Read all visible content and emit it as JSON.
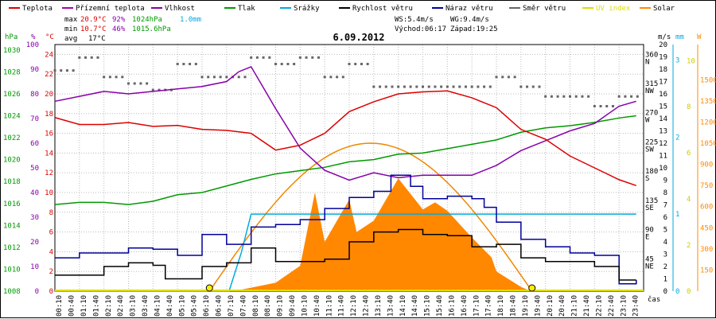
{
  "chart_data": {
    "type": "line",
    "title": "6.09.2012",
    "legend": [
      {
        "name": "Teplota",
        "color": "#dd0000"
      },
      {
        "name": "Přízemní teplota",
        "color": "#aa00aa"
      },
      {
        "name": "Vlhkost",
        "color": "#8800aa"
      },
      {
        "name": "Tlak",
        "color": "#009900"
      },
      {
        "name": "Srážky",
        "color": "#00aadd"
      },
      {
        "name": "Rychlost větru",
        "color": "#000000"
      },
      {
        "name": "Náraz větru",
        "color": "#000099"
      },
      {
        "name": "Směr větru",
        "color": "#666666"
      },
      {
        "name": "UV index",
        "color": "#dddd00"
      },
      {
        "name": "Solar",
        "color": "#ff8800"
      }
    ],
    "stats": {
      "max_label": "max",
      "max_temp": "20.9°C",
      "max_hum": "92%",
      "max_press": "1024hPa",
      "rain_total": "1.0mm",
      "min_label": "min",
      "min_temp": "10.7°C",
      "min_hum": "46%",
      "min_press": "1015.6hPa",
      "avg_label": "avg",
      "avg_temp": "17°C"
    },
    "wind_info": {
      "ws": "WS:5.4m/s",
      "wg": "WG:9.4m/s",
      "sunrise": "Východ:06:17",
      "sunset": "Západ:19:25"
    },
    "axes": {
      "hpa_label": "hPa",
      "pct_label": "%",
      "degc_label": "°C",
      "ms_label": "m/s",
      "mm_label": "mm",
      "w_label": "W",
      "time_label": "čas",
      "hpa_ticks": [
        1008,
        1010,
        1012,
        1014,
        1016,
        1018,
        1020,
        1022,
        1024,
        1026,
        1028,
        1030
      ],
      "pct_ticks": [
        0,
        10,
        20,
        30,
        40,
        50,
        60,
        70,
        80,
        90,
        100
      ],
      "temp_ticks": [
        0,
        2,
        4,
        6,
        8,
        10,
        12,
        14,
        16,
        18,
        20,
        22,
        24
      ],
      "dir_ticks": [
        {
          "deg": "45",
          "lbl": "NE",
          "v": 45
        },
        {
          "deg": "90",
          "lbl": "E",
          "v": 90
        },
        {
          "deg": "135",
          "lbl": "SE",
          "v": 135
        },
        {
          "deg": "180",
          "lbl": "S",
          "v": 180
        },
        {
          "deg": "225",
          "lbl": "SW",
          "v": 225
        },
        {
          "deg": "270",
          "lbl": "W",
          "v": 270
        },
        {
          "deg": "315",
          "lbl": "NW",
          "v": 315
        },
        {
          "deg": "360",
          "lbl": "N",
          "v": 360
        }
      ],
      "ms_ticks": [
        0,
        1,
        2,
        3,
        4,
        5,
        6,
        7,
        8,
        9,
        10,
        11,
        12,
        13,
        14,
        15,
        16,
        17,
        18,
        19,
        20
      ],
      "mm_ticks": [
        0,
        1,
        2,
        3
      ],
      "uv_ticks": [
        0,
        2,
        4,
        6,
        8,
        10
      ],
      "w_ticks": [
        150,
        300,
        450,
        600,
        750,
        900,
        1050,
        1200,
        1350,
        1500
      ],
      "time_ticks": [
        "00:10",
        "00:40",
        "01:10",
        "01:40",
        "02:10",
        "02:40",
        "03:10",
        "03:40",
        "04:10",
        "04:40",
        "05:10",
        "05:40",
        "06:10",
        "06:40",
        "07:10",
        "07:40",
        "08:10",
        "08:40",
        "09:10",
        "09:40",
        "10:10",
        "10:40",
        "11:10",
        "11:40",
        "12:10",
        "12:40",
        "13:10",
        "13:40",
        "14:10",
        "14:40",
        "15:10",
        "15:40",
        "16:10",
        "16:40",
        "17:10",
        "17:40",
        "18:10",
        "18:40",
        "19:10",
        "19:40",
        "20:10",
        "20:40",
        "21:10",
        "21:40",
        "22:10",
        "22:40",
        "23:10",
        "23:40"
      ]
    },
    "series": [
      {
        "name": "Teplota",
        "unit": "°C",
        "t": [
          0,
          1,
          2,
          3,
          4,
          5,
          6,
          7,
          8,
          9,
          10,
          11,
          12,
          13,
          14,
          15,
          16,
          17,
          18,
          19,
          20,
          21,
          22,
          23,
          23.7
        ],
        "values": [
          17.6,
          16.9,
          16.9,
          17.1,
          16.7,
          16.8,
          16.4,
          16.3,
          16.0,
          14.3,
          14.8,
          16.0,
          18.2,
          19.2,
          20.0,
          20.2,
          20.3,
          19.6,
          18.6,
          16.4,
          15.4,
          13.7,
          12.5,
          11.3,
          10.7
        ]
      },
      {
        "name": "Vlhkost",
        "unit": "%",
        "t": [
          0,
          1,
          2,
          3,
          4,
          5,
          6,
          7,
          7.5,
          8,
          9,
          10,
          11,
          12,
          13,
          14,
          15,
          16,
          17,
          18,
          19,
          20,
          21,
          22,
          23,
          23.7
        ],
        "values": [
          77,
          79,
          81,
          80,
          81,
          82,
          83,
          85,
          89,
          91,
          74,
          58,
          49,
          45,
          48,
          46,
          47,
          47,
          47,
          51,
          57,
          61,
          65,
          68,
          75,
          77
        ]
      },
      {
        "name": "Tlak",
        "unit": "hPa",
        "t": [
          0,
          1,
          2,
          3,
          4,
          5,
          6,
          7,
          8,
          9,
          10,
          11,
          12,
          13,
          14,
          15,
          16,
          17,
          18,
          19,
          20,
          21,
          22,
          23,
          23.7
        ],
        "values": [
          1015.9,
          1016.1,
          1016.1,
          1015.9,
          1016.2,
          1016.8,
          1017.0,
          1017.6,
          1018.2,
          1018.7,
          1019.0,
          1019.3,
          1019.8,
          1020.0,
          1020.5,
          1020.6,
          1021.0,
          1021.4,
          1021.8,
          1022.5,
          1022.9,
          1023.1,
          1023.4,
          1023.8,
          1024.0
        ]
      },
      {
        "name": "Srážky",
        "unit": "mm",
        "t": [
          0,
          7.1,
          7.6,
          8.0,
          23.7
        ],
        "values": [
          0,
          0,
          0.5,
          1.0,
          1.0
        ]
      },
      {
        "name": "Rychlost větru",
        "unit": "m/s",
        "t": [
          0,
          1,
          2,
          3,
          4,
          4.5,
          5,
          6,
          7,
          8,
          9,
          10,
          11,
          12,
          13,
          14,
          15,
          16,
          17,
          18,
          19,
          20,
          21,
          22,
          23,
          23.7
        ],
        "values": [
          1.3,
          1.3,
          2.0,
          2.3,
          2.1,
          1.0,
          1.0,
          2.0,
          2.3,
          3.5,
          2.4,
          2.4,
          2.6,
          4.0,
          4.8,
          5.0,
          4.6,
          4.5,
          3.6,
          3.8,
          2.7,
          2.4,
          2.4,
          2.0,
          0.9,
          0.9
        ]
      },
      {
        "name": "Náraz větru",
        "unit": "m/s",
        "t": [
          0,
          1,
          2,
          3,
          4,
          5,
          6,
          7,
          8,
          9,
          10,
          11,
          12,
          13,
          13.7,
          14.5,
          15,
          16,
          17,
          17.5,
          18,
          19,
          20,
          21,
          22,
          23,
          23.7
        ],
        "values": [
          2.7,
          3.1,
          3.1,
          3.5,
          3.4,
          2.9,
          4.6,
          3.8,
          5.2,
          5.4,
          5.8,
          6.7,
          7.6,
          8.1,
          9.4,
          8.5,
          7.5,
          7.7,
          7.5,
          6.8,
          5.6,
          4.2,
          3.6,
          3.1,
          2.9,
          0.6,
          0.9
        ]
      },
      {
        "name": "Směr větru",
        "unit": "°",
        "t": [
          0,
          1,
          2,
          3,
          4,
          5,
          6,
          7,
          8,
          9,
          10,
          11,
          12,
          13,
          14,
          15,
          16,
          17,
          18,
          19,
          20,
          21,
          22,
          23
        ],
        "values": [
          340,
          360,
          330,
          320,
          310,
          350,
          330,
          330,
          360,
          350,
          360,
          330,
          350,
          315,
          315,
          315,
          315,
          315,
          330,
          315,
          300,
          300,
          285,
          300
        ]
      },
      {
        "name": "Solar",
        "unit": "W",
        "t": [
          7.3,
          8,
          9,
          10,
          10.6,
          11,
          12,
          12.3,
          13,
          14,
          15,
          15.5,
          16,
          17,
          17.8,
          18,
          19,
          19.4
        ],
        "values": [
          0,
          25,
          60,
          180,
          700,
          350,
          650,
          420,
          500,
          800,
          580,
          630,
          570,
          380,
          240,
          140,
          30,
          0
        ]
      },
      {
        "name": "UV index",
        "unit": "",
        "t": [
          6.3,
          19.45
        ],
        "values": [
          0,
          0
        ]
      }
    ],
    "sun_curve": {
      "rise_h": 6.3,
      "set_h": 19.45,
      "peak_w": 1050
    }
  }
}
